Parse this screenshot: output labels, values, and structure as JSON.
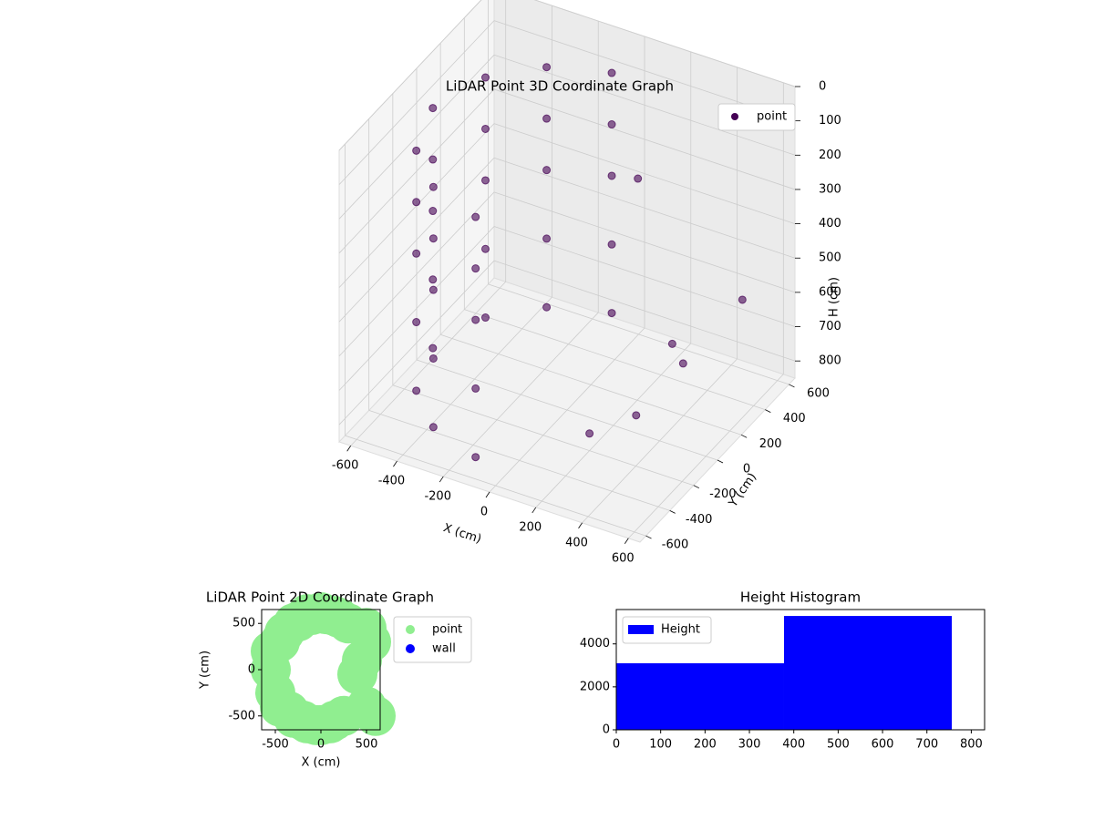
{
  "chart_data": [
    {
      "type": "scatter3d",
      "title": "LiDAR Point 3D Coordinate Graph",
      "xlabel": "X (cm)",
      "ylabel": "Y (cm)",
      "zlabel": "H (cm)",
      "xlim": [
        -650,
        650
      ],
      "ylim": [
        -650,
        650
      ],
      "zlim": [
        850,
        0
      ],
      "xticks": [
        -600,
        -400,
        -200,
        0,
        200,
        400,
        600
      ],
      "yticks": [
        -600,
        -400,
        -200,
        0,
        200,
        400,
        600
      ],
      "zticks": [
        0,
        100,
        200,
        300,
        400,
        500,
        600,
        700,
        800
      ],
      "grid": true,
      "series": [
        {
          "name": "point",
          "color": "#440154",
          "x": [
            -101,
            -101,
            -101,
            -101,
            -101,
            -333,
            -333,
            -333,
            -333,
            -333,
            -502,
            -502,
            -502,
            -502,
            -502,
            -580,
            -580,
            -580,
            -580,
            -580,
            -502,
            -502,
            -502,
            -502,
            -502,
            -333,
            -333,
            -333,
            -333,
            -333,
            -101,
            -101,
            -101,
            -101,
            -101,
            300,
            450,
            200,
            500,
            100,
            350
          ],
          "y": [
            571,
            571,
            571,
            571,
            571,
            475,
            475,
            475,
            475,
            475,
            290,
            290,
            290,
            290,
            290,
            0,
            0,
            0,
            0,
            0,
            -290,
            -290,
            -290,
            -290,
            -290,
            -475,
            -475,
            -475,
            -475,
            -475,
            -571,
            -571,
            -571,
            -571,
            -571,
            300,
            100,
            -200,
            500,
            400,
            -100
          ],
          "z": [
            100,
            250,
            400,
            600,
            800,
            100,
            250,
            400,
            600,
            800,
            100,
            250,
            400,
            600,
            800,
            100,
            250,
            400,
            600,
            800,
            100,
            250,
            400,
            600,
            800,
            100,
            250,
            400,
            600,
            800,
            100,
            250,
            400,
            600,
            800,
            700,
            650,
            800,
            600,
            300,
            750
          ]
        }
      ]
    },
    {
      "type": "scatter",
      "title": "LiDAR Point 2D Coordinate Graph",
      "xlabel": "X (cm)",
      "ylabel": "Y (cm)",
      "xlim": [
        -650,
        650
      ],
      "ylim": [
        -650,
        650
      ],
      "xticks": [
        -500,
        0,
        500
      ],
      "yticks": [
        -500,
        0,
        500
      ],
      "series": [
        {
          "name": "point",
          "color": "#90ee90",
          "x": [
            -550,
            -450,
            -300,
            -150,
            0,
            150,
            300,
            -500,
            -350,
            -200,
            -50,
            100,
            250,
            -550,
            -400,
            -250,
            -100,
            50,
            200,
            -450,
            -300,
            -150,
            0,
            150,
            500,
            550,
            450,
            600,
            500,
            400
          ],
          "y": [
            0,
            300,
            500,
            600,
            620,
            580,
            500,
            -250,
            -450,
            -550,
            -600,
            -580,
            -500,
            200,
            400,
            520,
            590,
            600,
            560,
            -400,
            -520,
            -580,
            -600,
            -550,
            450,
            300,
            100,
            -500,
            -400,
            -50
          ]
        },
        {
          "name": "wall",
          "color": "#0000ff",
          "x": [],
          "y": []
        }
      ]
    },
    {
      "type": "histogram",
      "title": "Height Histogram",
      "bins": [
        0,
        378,
        756
      ],
      "xlim": [
        0,
        830
      ],
      "ylim": [
        0,
        5600
      ],
      "xticks": [
        0,
        100,
        200,
        300,
        400,
        500,
        600,
        700,
        800
      ],
      "yticks": [
        0,
        2000,
        4000
      ],
      "series": [
        {
          "name": "Height",
          "color": "#0000ff",
          "values": [
            3100,
            5300
          ]
        }
      ]
    }
  ]
}
